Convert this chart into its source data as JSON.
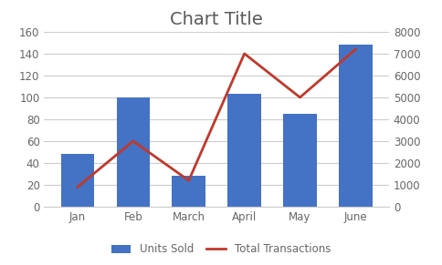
{
  "categories": [
    "Jan",
    "Feb",
    "March",
    "April",
    "May",
    "June"
  ],
  "units_sold": [
    48,
    100,
    28,
    103,
    85,
    148
  ],
  "total_transactions": [
    900,
    3000,
    1200,
    7000,
    5000,
    7200
  ],
  "bar_color": "#4472C4",
  "line_color": "#C0392B",
  "title": "Chart Title",
  "title_fontsize": 14,
  "left_ylim": [
    0,
    160
  ],
  "left_yticks": [
    0,
    20,
    40,
    60,
    80,
    100,
    120,
    140,
    160
  ],
  "right_ylim": [
    0,
    8000
  ],
  "right_yticks": [
    0,
    1000,
    2000,
    3000,
    4000,
    5000,
    6000,
    7000,
    8000
  ],
  "legend_units": "Units Sold",
  "legend_trans": "Total Transactions",
  "bg_color": "#ffffff",
  "grid_color": "#cccccc",
  "tick_label_color": "#666666",
  "title_color": "#595959"
}
